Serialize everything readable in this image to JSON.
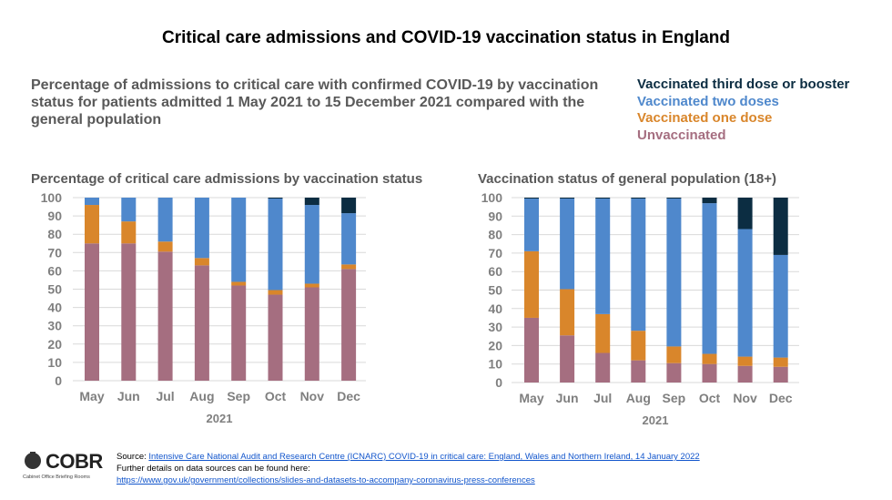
{
  "title": "Critical care admissions and COVID-19 vaccination status in England",
  "subtitle": "Percentage of admissions to critical care with confirmed COVID-19 by vaccination status for patients admitted 1 May 2021 to 15 December 2021 compared with the general population",
  "legend": [
    {
      "label": "Vaccinated third dose or booster",
      "color": "#0c2d42"
    },
    {
      "label": "Vaccinated two doses",
      "color": "#4f88cc"
    },
    {
      "label": "Vaccinated one dose",
      "color": "#d9862b"
    },
    {
      "label": "Unvaccinated",
      "color": "#a56e80"
    }
  ],
  "chart_data": [
    {
      "type": "bar",
      "stacked": true,
      "title": "Percentage of critical care admissions by vaccination status",
      "xlabel": "2021",
      "ylabel": "",
      "ylim": [
        0,
        100
      ],
      "yticks": [
        0,
        10,
        20,
        30,
        40,
        50,
        60,
        70,
        80,
        90,
        100
      ],
      "grid": true,
      "categories": [
        "May",
        "Jun",
        "Jul",
        "Aug",
        "Sep",
        "Oct",
        "Nov",
        "Dec"
      ],
      "series": [
        {
          "name": "Unvaccinated",
          "values": [
            75,
            75,
            70.5,
            63,
            52,
            47,
            51,
            61
          ]
        },
        {
          "name": "Vaccinated one dose",
          "values": [
            21,
            12,
            5.5,
            4,
            2,
            2.5,
            2,
            2.5
          ]
        },
        {
          "name": "Vaccinated two doses",
          "values": [
            4,
            13,
            24,
            33,
            46,
            50,
            43,
            28
          ]
        },
        {
          "name": "Vaccinated third dose or booster",
          "values": [
            0,
            0,
            0,
            0,
            0,
            0.5,
            4,
            8.5
          ]
        }
      ]
    },
    {
      "type": "bar",
      "stacked": true,
      "title": "Vaccination status of general population (18+)",
      "xlabel": "2021",
      "ylabel": "",
      "ylim": [
        0,
        100
      ],
      "yticks": [
        0,
        10,
        20,
        30,
        40,
        50,
        60,
        70,
        80,
        90,
        100
      ],
      "grid": true,
      "categories": [
        "May",
        "Jun",
        "Jul",
        "Aug",
        "Sep",
        "Oct",
        "Nov",
        "Dec"
      ],
      "series": [
        {
          "name": "Unvaccinated",
          "values": [
            35,
            25.5,
            16,
            12,
            10.5,
            10,
            9,
            8.5
          ]
        },
        {
          "name": "Vaccinated one dose",
          "values": [
            36,
            25,
            21,
            16,
            9,
            5.5,
            5,
            5
          ]
        },
        {
          "name": "Vaccinated two doses",
          "values": [
            28.5,
            49,
            62.5,
            71.5,
            80,
            81.5,
            69,
            55.5
          ]
        },
        {
          "name": "Vaccinated third dose or booster",
          "values": [
            0.5,
            0.5,
            0.5,
            0.5,
            0.5,
            3,
            17,
            31
          ]
        }
      ]
    }
  ],
  "footer": {
    "source_prefix": "Source: ",
    "source_link": "Intensive Care National Audit and Research Centre (ICNARC) COVID-19 in critical care: England, Wales and Northern Ireland, 14 January 2022",
    "further": "Further details on data sources can be found here:",
    "url": "https://www.gov.uk/government/collections/slides-and-datasets-to-accompany-coronavirus-press-conferences"
  },
  "logo": {
    "name": "COBR",
    "sub": "Cabinet Office Briefing Rooms"
  }
}
